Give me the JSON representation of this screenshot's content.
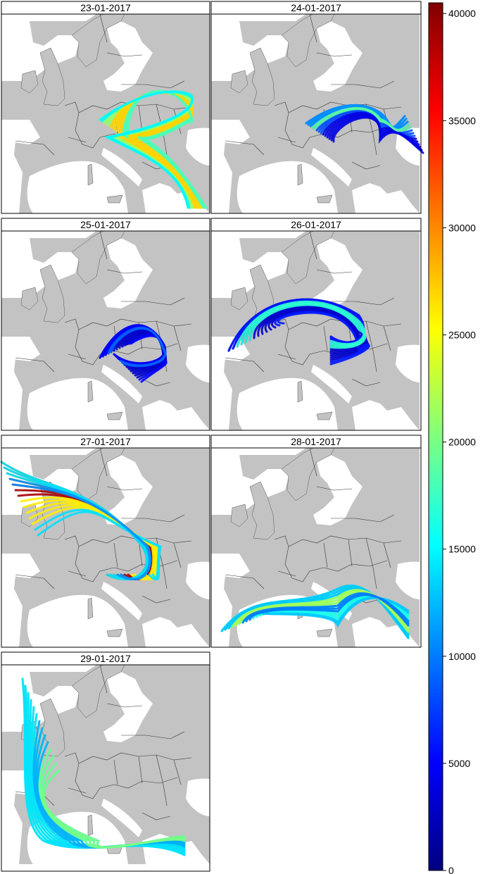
{
  "panels": [
    {
      "date": "23-01-2017"
    },
    {
      "date": "24-01-2017"
    },
    {
      "date": "25-01-2017"
    },
    {
      "date": "26-01-2017"
    },
    {
      "date": "27-01-2017"
    },
    {
      "date": "28-01-2017"
    },
    {
      "date": "29-01-2017"
    }
  ],
  "colorbar": {
    "min": 0,
    "max": 40500,
    "ticks": [
      "0",
      "5000",
      "10000",
      "15000",
      "20000",
      "25000",
      "30000",
      "35000",
      "40000"
    ],
    "colormap": "jet",
    "colors": [
      "#00007f",
      "#0000ff",
      "#007fff",
      "#00ffff",
      "#7fff7f",
      "#ffff00",
      "#ff7f00",
      "#ff0000",
      "#7f0000"
    ]
  },
  "map_style": {
    "land": "#c3c3c3",
    "sea": "#ffffff",
    "border": "#333333"
  },
  "trajectory_groups": [
    [
      {
        "v": 21000,
        "n": 5
      },
      {
        "v": 27000,
        "n": 6
      },
      {
        "v": 18000,
        "n": 3
      },
      {
        "v": 15000,
        "n": 2
      }
    ],
    [
      {
        "v": 8000,
        "n": 8
      },
      {
        "v": 4000,
        "n": 6
      },
      {
        "v": 11000,
        "n": 3
      },
      {
        "v": 19000,
        "n": 2
      }
    ],
    [
      {
        "v": 3000,
        "n": 12
      },
      {
        "v": 5000,
        "n": 5
      },
      {
        "v": 9000,
        "n": 2
      }
    ],
    [
      {
        "v": 3000,
        "n": 12
      },
      {
        "v": 6000,
        "n": 4
      },
      {
        "v": 17000,
        "n": 4
      }
    ],
    [
      {
        "v": 31000,
        "n": 4
      },
      {
        "v": 39000,
        "n": 3
      },
      {
        "v": 26000,
        "n": 5
      },
      {
        "v": 14000,
        "n": 5
      },
      {
        "v": 11000,
        "n": 2
      }
    ],
    [
      {
        "v": 16000,
        "n": 12
      },
      {
        "v": 13000,
        "n": 5
      },
      {
        "v": 22000,
        "n": 3
      },
      {
        "v": 10000,
        "n": 3
      }
    ],
    [
      {
        "v": 18000,
        "n": 10
      },
      {
        "v": 14000,
        "n": 10
      },
      {
        "v": 12000,
        "n": 4
      },
      {
        "v": 20000,
        "n": 4
      }
    ]
  ]
}
